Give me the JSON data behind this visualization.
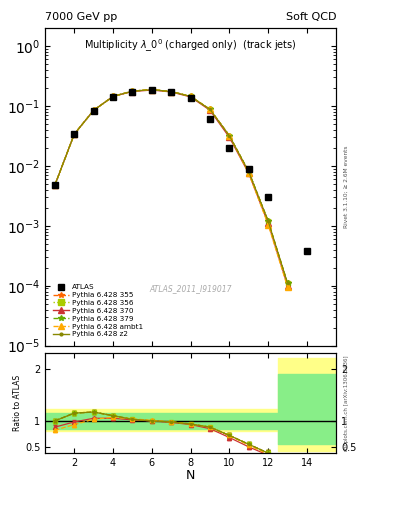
{
  "title_main": "Multiplicity $\\lambda\\_0^0$ (charged only)  (track jets)",
  "header_left": "7000 GeV pp",
  "header_right": "Soft QCD",
  "watermark": "ATLAS_2011_I919017",
  "right_label_top": "Rivet 3.1.10; ≥ 2.6M events",
  "right_label_bottom": "mcplots.cern.ch [arXiv:1306.3436]",
  "atlas_data": {
    "x": [
      1,
      2,
      3,
      4,
      5,
      6,
      7,
      8,
      9,
      10,
      11,
      12,
      14
    ],
    "y": [
      0.0048,
      0.034,
      0.082,
      0.14,
      0.175,
      0.185,
      0.172,
      0.135,
      0.062,
      0.02,
      0.009,
      0.003,
      0.00038
    ],
    "color": "#000000",
    "marker": "s",
    "markersize": 4
  },
  "pythia_355": {
    "label": "Pythia 6.428 355",
    "x": [
      1,
      2,
      3,
      4,
      5,
      6,
      7,
      8,
      9,
      10,
      11,
      12,
      13
    ],
    "y": [
      0.0048,
      0.034,
      0.085,
      0.145,
      0.178,
      0.188,
      0.175,
      0.145,
      0.088,
      0.032,
      0.008,
      0.0012,
      0.00011
    ],
    "color": "#ff6600",
    "linestyle": "--",
    "marker": "*",
    "markersize": 5
  },
  "pythia_356": {
    "label": "Pythia 6.428 356",
    "x": [
      1,
      2,
      3,
      4,
      5,
      6,
      7,
      8,
      9,
      10,
      11,
      12,
      13
    ],
    "y": [
      0.0048,
      0.034,
      0.085,
      0.145,
      0.178,
      0.188,
      0.175,
      0.145,
      0.088,
      0.032,
      0.008,
      0.0012,
      0.00011
    ],
    "color": "#aacc00",
    "linestyle": ":",
    "marker": "s",
    "markersize": 3
  },
  "pythia_370": {
    "label": "Pythia 6.428 370",
    "x": [
      1,
      2,
      3,
      4,
      5,
      6,
      7,
      8,
      9,
      10,
      11,
      12,
      13
    ],
    "y": [
      0.0048,
      0.034,
      0.085,
      0.145,
      0.175,
      0.185,
      0.172,
      0.142,
      0.085,
      0.03,
      0.0075,
      0.0011,
      0.0001
    ],
    "color": "#cc3333",
    "linestyle": "-",
    "marker": "^",
    "markersize": 4
  },
  "pythia_379": {
    "label": "Pythia 6.428 379",
    "x": [
      1,
      2,
      3,
      4,
      5,
      6,
      7,
      8,
      9,
      10,
      11,
      12,
      13
    ],
    "y": [
      0.0048,
      0.034,
      0.085,
      0.145,
      0.178,
      0.188,
      0.175,
      0.145,
      0.088,
      0.032,
      0.008,
      0.0012,
      0.00011
    ],
    "color": "#66aa00",
    "linestyle": "--",
    "marker": "*",
    "markersize": 4
  },
  "pythia_ambt1": {
    "label": "Pythia 6.428 ambt1",
    "x": [
      1,
      2,
      3,
      4,
      5,
      6,
      7,
      8,
      9,
      10,
      11,
      12,
      13
    ],
    "y": [
      0.0048,
      0.034,
      0.085,
      0.145,
      0.178,
      0.188,
      0.175,
      0.145,
      0.088,
      0.032,
      0.0075,
      0.00105,
      9.5e-05
    ],
    "color": "#ffaa00",
    "linestyle": "--",
    "marker": "^",
    "markersize": 4
  },
  "pythia_z2": {
    "label": "Pythia 6.428 z2",
    "x": [
      1,
      2,
      3,
      4,
      5,
      6,
      7,
      8,
      9,
      10,
      11,
      12,
      13
    ],
    "y": [
      0.0048,
      0.034,
      0.085,
      0.145,
      0.178,
      0.188,
      0.175,
      0.145,
      0.088,
      0.032,
      0.008,
      0.0012,
      0.00011
    ],
    "color": "#888800",
    "linestyle": "-",
    "marker": ".",
    "markersize": 3
  },
  "ratio_355": {
    "x": [
      1,
      2,
      3,
      4,
      5,
      6,
      7,
      8,
      9,
      10,
      11,
      12,
      13
    ],
    "y": [
      1.0,
      1.15,
      1.17,
      1.1,
      1.03,
      1.0,
      0.98,
      0.94,
      0.88,
      0.72,
      0.55,
      0.38,
      0.25
    ],
    "yerr": [
      0.04,
      0.04,
      0.03,
      0.03,
      0.02,
      0.02,
      0.02,
      0.02,
      0.03,
      0.04,
      0.05,
      0.06,
      0.07
    ],
    "color": "#ff6600",
    "linestyle": "--",
    "marker": "*"
  },
  "ratio_356": {
    "x": [
      1,
      2,
      3,
      4,
      5,
      6,
      7,
      8,
      9,
      10,
      11,
      12,
      13
    ],
    "y": [
      1.0,
      1.15,
      1.17,
      1.1,
      1.03,
      1.0,
      0.98,
      0.94,
      0.88,
      0.72,
      0.55,
      0.38,
      0.25
    ],
    "yerr": [
      0.04,
      0.04,
      0.03,
      0.03,
      0.02,
      0.02,
      0.02,
      0.02,
      0.03,
      0.04,
      0.05,
      0.06,
      0.07
    ],
    "color": "#aacc00",
    "linestyle": ":",
    "marker": "s"
  },
  "ratio_370": {
    "x": [
      1,
      2,
      3,
      4,
      5,
      6,
      7,
      8,
      9,
      10,
      11,
      12,
      13
    ],
    "y": [
      0.88,
      0.98,
      1.05,
      1.05,
      1.02,
      1.0,
      0.97,
      0.93,
      0.85,
      0.68,
      0.5,
      0.34,
      0.2
    ],
    "yerr": [
      0.04,
      0.04,
      0.03,
      0.03,
      0.02,
      0.02,
      0.02,
      0.02,
      0.03,
      0.04,
      0.05,
      0.06,
      0.07
    ],
    "color": "#cc3333",
    "linestyle": "-",
    "marker": "^"
  },
  "ratio_379": {
    "x": [
      1,
      2,
      3,
      4,
      5,
      6,
      7,
      8,
      9,
      10,
      11,
      12,
      13
    ],
    "y": [
      1.0,
      1.15,
      1.17,
      1.1,
      1.03,
      1.0,
      0.98,
      0.94,
      0.88,
      0.72,
      0.55,
      0.38,
      0.25
    ],
    "yerr": [
      0.04,
      0.04,
      0.03,
      0.03,
      0.02,
      0.02,
      0.02,
      0.02,
      0.03,
      0.04,
      0.05,
      0.06,
      0.07
    ],
    "color": "#66aa00",
    "linestyle": "--",
    "marker": "*"
  },
  "ratio_ambt1": {
    "x": [
      1,
      2,
      3,
      4,
      5,
      6,
      7,
      8,
      9,
      10,
      11,
      12,
      13
    ],
    "y": [
      0.82,
      0.93,
      1.03,
      1.07,
      1.04,
      1.01,
      0.98,
      0.94,
      0.88,
      0.72,
      0.53,
      0.36,
      0.22
    ],
    "yerr": [
      0.04,
      0.04,
      0.03,
      0.03,
      0.02,
      0.02,
      0.02,
      0.02,
      0.03,
      0.04,
      0.05,
      0.06,
      0.07
    ],
    "color": "#ffaa00",
    "linestyle": "--",
    "marker": "^"
  },
  "ratio_z2": {
    "x": [
      1,
      2,
      3,
      4,
      5,
      6,
      7,
      8,
      9,
      10,
      11,
      12,
      13
    ],
    "y": [
      1.0,
      1.15,
      1.17,
      1.1,
      1.03,
      1.0,
      0.98,
      0.94,
      0.88,
      0.72,
      0.55,
      0.38,
      0.25
    ],
    "yerr": [
      0.04,
      0.04,
      0.03,
      0.03,
      0.02,
      0.02,
      0.02,
      0.02,
      0.03,
      0.04,
      0.05,
      0.06,
      0.07
    ],
    "color": "#888800",
    "linestyle": "-",
    "marker": "."
  },
  "ylim_main": [
    1e-05,
    2.0
  ],
  "ylim_ratio": [
    0.38,
    2.3
  ],
  "xlim": [
    0.5,
    15.5
  ],
  "yellow_color": "#ffff88",
  "green_color": "#88ee88",
  "band_yellow": {
    "x1_lo": 0.5,
    "x1_hi": 12.5,
    "y1_lo": 0.8,
    "y1_hi": 1.22,
    "x2_lo": 12.5,
    "x2_hi": 15.5,
    "y2_lo": 0.42,
    "y2_hi": 2.2
  },
  "band_green": {
    "x1_lo": 0.5,
    "x1_hi": 12.5,
    "y1_lo": 0.85,
    "y1_hi": 1.15,
    "x2_lo": 12.5,
    "x2_hi": 15.5,
    "y2_lo": 0.55,
    "y2_hi": 1.9
  }
}
